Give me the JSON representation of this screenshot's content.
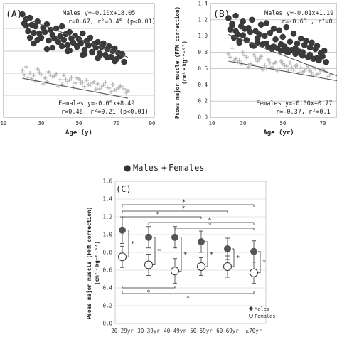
{
  "legend_main": {
    "males": "Males",
    "females": "Females",
    "male_symbol": "●",
    "female_symbol": "+"
  },
  "panel_a": {
    "letter": "(A)",
    "male_eq": "Males y=-0.10x+18.05",
    "male_r": "r=0.67, r²=0.45 (p<0.01)",
    "female_eq": "Females y=-0.05x+8.49",
    "female_r": "r=0.46, r²=0.21 (p<0.01)",
    "xlabel": "Age (y)",
    "xticks": [
      "10",
      "30",
      "50",
      "70",
      "90"
    ]
  },
  "panel_b": {
    "letter": "(B)",
    "male_eq": "Males y=-0.01x+1.19",
    "male_r": "r=-0.63 , r²=0.",
    "female_eq": "Females y=-0.00x+0.77",
    "female_r": "r=-0.37, r²=0.1",
    "xlabel": "Age (yr)",
    "ylabel_line1": "Psoas major muscle (FFM correction)",
    "ylabel_line2": "(cm²・kg⁻⁰·⁶⁷)",
    "xticks": [
      "10",
      "30",
      "50",
      "70"
    ],
    "yticks": [
      "0.0",
      "0.2",
      "0.4",
      "0.6",
      "0.8",
      "1.0",
      "1.2",
      "1.4"
    ]
  },
  "panel_c": {
    "letter": "(C)",
    "ylabel_line1": "Psoas major muscle (FFM correction)",
    "ylabel_line2": "(cm²・kg⁻⁰·⁶⁷)",
    "yticks": [
      "0.0",
      "0.2",
      "0.4",
      "0.6",
      "0.8",
      "1.0",
      "1.2",
      "1.4",
      "1.6"
    ],
    "legend_males": "Males",
    "legend_females": "Females",
    "star": "*"
  },
  "colors": {
    "male": "#3a3a3a",
    "female": "#b8b8b8",
    "grid": "#999999",
    "line": "#555555"
  },
  "chart_data": [
    {
      "type": "scatter",
      "title": "(A)",
      "xlabel": "Age (y)",
      "ylabel": "",
      "xlim": [
        10,
        90
      ],
      "grid": true,
      "series": [
        {
          "name": "Males",
          "marker": "filled-circle",
          "x": [
            20,
            21,
            22,
            23,
            24,
            25,
            26,
            27,
            28,
            30,
            31,
            32,
            33,
            34,
            35,
            36,
            38,
            39,
            40,
            41,
            42,
            43,
            44,
            45,
            46,
            47,
            48,
            49,
            50,
            51,
            52,
            53,
            54,
            55,
            56,
            57,
            58,
            59,
            60,
            61,
            62,
            63,
            64,
            65,
            66,
            67,
            68,
            69,
            70,
            71,
            72,
            73,
            74,
            22,
            26,
            29,
            33,
            37,
            41,
            45,
            49,
            53,
            57,
            61,
            65,
            69,
            24,
            28,
            36,
            44,
            52,
            60
          ],
          "y": [
            16.5,
            15.2,
            15.8,
            14.1,
            16.0,
            15.0,
            13.9,
            14.8,
            15.5,
            13.2,
            14.6,
            14.0,
            15.1,
            12.8,
            14.3,
            13.6,
            14.5,
            12.6,
            13.4,
            14.8,
            12.9,
            13.7,
            12.2,
            14.0,
            13.1,
            12.5,
            13.5,
            12.0,
            13.0,
            12.4,
            13.8,
            11.5,
            12.7,
            12.1,
            13.2,
            11.2,
            12.3,
            11.8,
            12.6,
            11.0,
            11.9,
            12.4,
            10.8,
            11.6,
            12.0,
            10.5,
            11.3,
            11.7,
            10.2,
            11.0,
            10.6,
            10.9,
            9.8,
            14.9,
            12.4,
            13.8,
            11.6,
            13.1,
            12.0,
            11.4,
            11.9,
            10.9,
            11.1,
            10.7,
            10.4,
            9.9,
            13.2,
            12.9,
            11.8,
            11.3,
            10.8,
            10.3
          ]
        },
        {
          "name": "Females",
          "marker": "plus",
          "x": [
            20,
            22,
            24,
            26,
            28,
            30,
            32,
            34,
            36,
            38,
            40,
            42,
            44,
            46,
            48,
            50,
            52,
            54,
            56,
            58,
            60,
            62,
            64,
            66,
            68,
            70,
            72,
            74,
            76,
            21,
            25,
            29,
            33,
            37,
            41,
            45,
            49,
            53,
            57,
            61,
            65,
            69,
            73,
            23,
            27,
            31,
            35,
            39,
            43,
            47,
            51,
            55,
            59,
            63,
            67,
            71,
            75
          ],
          "y": [
            8.6,
            9.1,
            8.2,
            7.9,
            8.8,
            8.0,
            7.5,
            8.4,
            7.7,
            8.1,
            7.3,
            7.9,
            7.0,
            7.6,
            6.8,
            7.4,
            6.9,
            7.2,
            6.5,
            7.0,
            6.7,
            6.3,
            6.9,
            6.1,
            6.6,
            5.9,
            6.4,
            6.0,
            5.7,
            8.0,
            7.4,
            8.3,
            7.0,
            7.8,
            6.6,
            7.2,
            7.5,
            6.3,
            6.8,
            6.0,
            6.2,
            5.8,
            6.3,
            7.6,
            7.1,
            6.7,
            7.9,
            6.4,
            7.3,
            6.2,
            6.9,
            6.6,
            5.9,
            6.5,
            5.6,
            6.1,
            5.5
          ]
        }
      ],
      "fits": [
        {
          "name": "Males",
          "slope": -0.1,
          "intercept": 18.05
        },
        {
          "name": "Females",
          "slope": -0.05,
          "intercept": 8.49
        }
      ]
    },
    {
      "type": "scatter",
      "title": "(B)",
      "xlabel": "Age (yr)",
      "ylabel": "Psoas major muscle (FFM correction) (cm²・kg⁻⁰·⁶⁷)",
      "xlim": [
        10,
        90
      ],
      "ylim": [
        0,
        1.4
      ],
      "grid": true,
      "series": [
        {
          "name": "Males",
          "marker": "filled-circle",
          "x": [
            20,
            21,
            22,
            23,
            24,
            25,
            26,
            27,
            28,
            30,
            31,
            32,
            33,
            34,
            35,
            36,
            38,
            39,
            40,
            41,
            42,
            43,
            44,
            45,
            46,
            47,
            48,
            49,
            50,
            51,
            52,
            53,
            54,
            55,
            56,
            57,
            58,
            59,
            60,
            61,
            62,
            63,
            64,
            65,
            66,
            67,
            68,
            69,
            70,
            71,
            72,
            73,
            74,
            22,
            26,
            29,
            33,
            37,
            41,
            45,
            49,
            53,
            57,
            61,
            65,
            69,
            24,
            28,
            36,
            44,
            52,
            60
          ],
          "y": [
            1.22,
            1.08,
            1.15,
            0.98,
            1.25,
            1.02,
            0.92,
            1.12,
            1.18,
            0.95,
            1.1,
            1.05,
            1.2,
            0.88,
            1.06,
            0.97,
            1.14,
            0.9,
            1.0,
            1.16,
            0.86,
            1.04,
            0.84,
            1.09,
            0.96,
            0.85,
            1.07,
            0.82,
            0.99,
            0.87,
            1.11,
            0.8,
            0.93,
            0.83,
            1.03,
            0.78,
            0.91,
            0.81,
            0.97,
            0.76,
            0.89,
            0.94,
            0.74,
            0.86,
            0.92,
            0.72,
            0.84,
            0.88,
            0.7,
            0.79,
            0.75,
            0.82,
            0.68,
            1.13,
            0.94,
            1.09,
            0.89,
            1.02,
            0.91,
            0.87,
            0.9,
            0.83,
            0.85,
            0.8,
            0.77,
            0.73,
            1.06,
            1.01,
            0.92,
            0.86,
            0.81,
            0.78
          ]
        },
        {
          "name": "Females",
          "marker": "plus",
          "x": [
            20,
            22,
            24,
            26,
            28,
            30,
            32,
            34,
            36,
            38,
            40,
            42,
            44,
            46,
            48,
            50,
            52,
            54,
            56,
            58,
            60,
            62,
            64,
            66,
            68,
            70,
            72,
            74,
            76,
            21,
            25,
            29,
            33,
            37,
            41,
            45,
            49,
            53,
            57,
            61,
            65,
            69,
            73,
            23,
            27,
            31,
            35,
            39,
            43,
            47,
            51,
            55,
            59,
            63,
            67,
            71,
            75
          ],
          "y": [
            0.78,
            0.85,
            0.72,
            0.7,
            0.8,
            0.74,
            0.66,
            0.77,
            0.69,
            0.75,
            0.64,
            0.71,
            0.62,
            0.68,
            0.6,
            0.66,
            0.63,
            0.67,
            0.58,
            0.64,
            0.61,
            0.57,
            0.63,
            0.55,
            0.6,
            0.54,
            0.59,
            0.56,
            0.52,
            0.74,
            0.68,
            0.76,
            0.65,
            0.72,
            0.61,
            0.66,
            0.69,
            0.58,
            0.63,
            0.56,
            0.57,
            0.53,
            0.58,
            0.7,
            0.66,
            0.62,
            0.73,
            0.59,
            0.67,
            0.57,
            0.64,
            0.61,
            0.55,
            0.6,
            0.52,
            0.57,
            0.5
          ]
        }
      ],
      "fits": [
        {
          "name": "Males",
          "slope": -0.01,
          "intercept": 1.19
        },
        {
          "name": "Females",
          "slope": -0.0,
          "intercept": 0.77
        }
      ]
    },
    {
      "type": "scatter",
      "title": "(C)",
      "xlabel": "",
      "ylabel": "Psoas major muscle (FFM correction) (cm²・kg⁻⁰·⁶⁷)",
      "ylim": [
        0,
        1.6
      ],
      "grid": true,
      "legend": "bottom-right",
      "categories": [
        "20-29yr",
        "30-39yr",
        "40-49yr",
        "50-59yr",
        "60-69yr",
        "≥70yr"
      ],
      "series": [
        {
          "name": "Males",
          "marker": "filled-circle",
          "values": [
            1.05,
            0.97,
            0.97,
            0.92,
            0.84,
            0.81
          ],
          "error": [
            0.15,
            0.12,
            0.12,
            0.12,
            0.12,
            0.12
          ]
        },
        {
          "name": "Females",
          "marker": "open-circle",
          "values": [
            0.75,
            0.66,
            0.59,
            0.64,
            0.64,
            0.57
          ],
          "error": [
            0.12,
            0.12,
            0.14,
            0.1,
            0.12,
            0.12
          ]
        }
      ]
    }
  ]
}
